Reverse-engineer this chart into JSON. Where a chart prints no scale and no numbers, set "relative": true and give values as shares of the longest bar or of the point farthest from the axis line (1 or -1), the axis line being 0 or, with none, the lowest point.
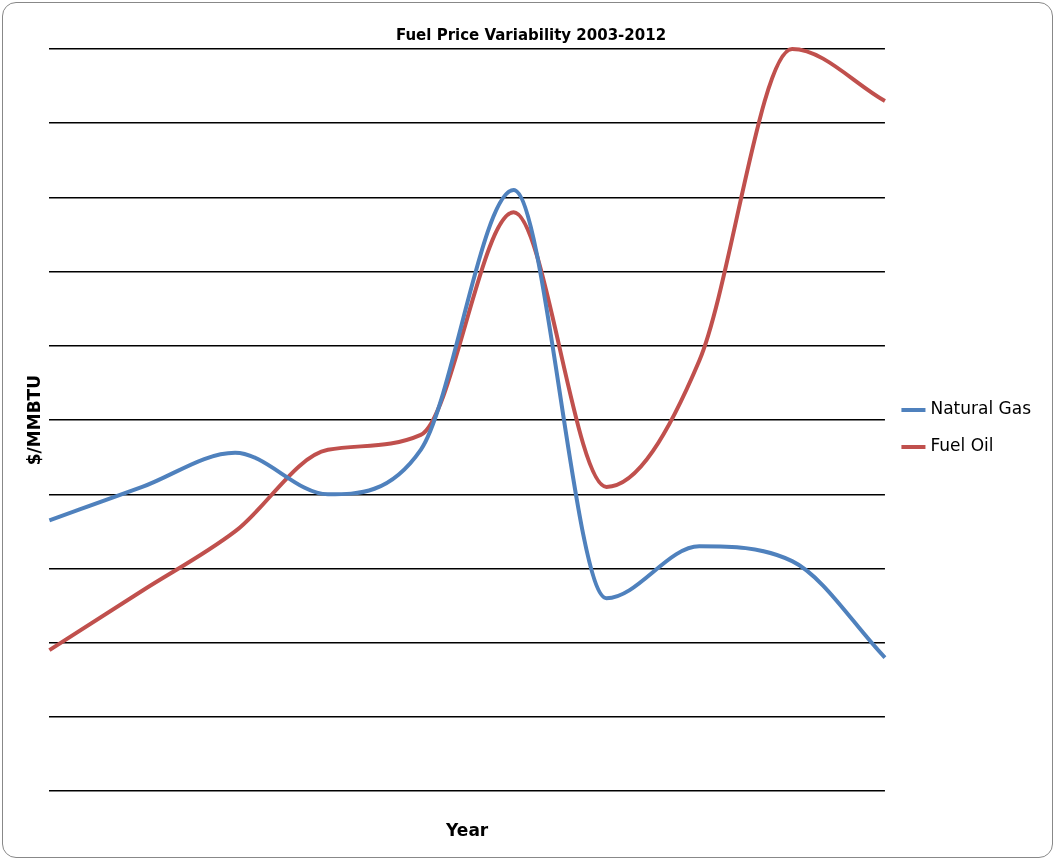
{
  "chart_data": {
    "type": "line",
    "title": "Fuel Price Variability 2003-2012",
    "xlabel": "Year",
    "ylabel": "$/MMBTU",
    "relative": true,
    "grid": "y",
    "legend": "right",
    "marker": "none",
    "line_style": "solid",
    "categories": [
      null,
      null,
      null,
      null,
      null,
      null,
      null,
      null,
      null,
      null
    ],
    "series": [
      {
        "name": "Natural Gas",
        "color": "#4f81bd",
        "values": [
          0.365,
          0.41,
          0.456,
          0.4,
          0.46,
          0.81,
          0.26,
          0.33,
          0.31,
          0.18
        ]
      },
      {
        "name": "Fuel Oil",
        "color": "#c0504d",
        "values": [
          0.19,
          0.27,
          0.35,
          0.46,
          0.48,
          0.78,
          0.41,
          0.58,
          1,
          0.93
        ]
      }
    ]
  }
}
